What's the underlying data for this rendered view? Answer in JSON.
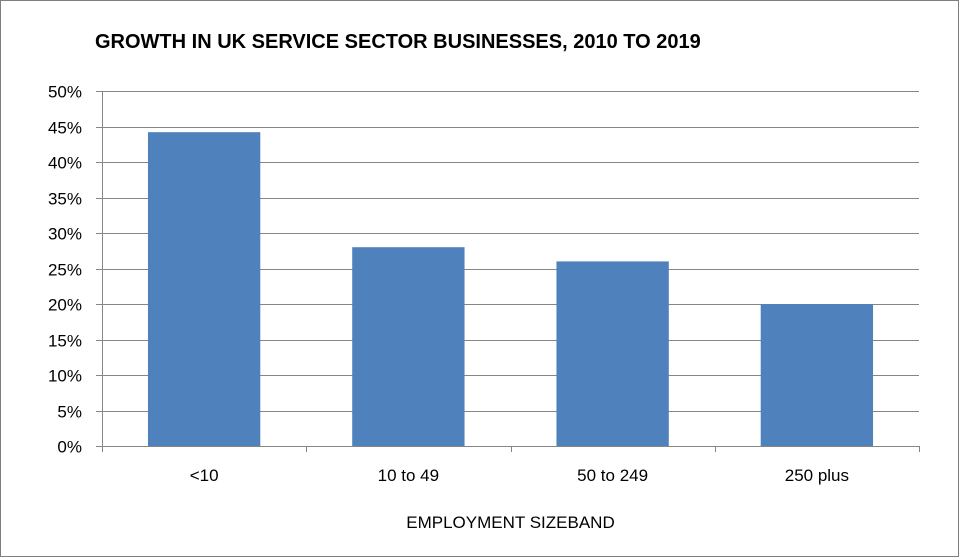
{
  "chart_data": {
    "type": "bar",
    "title": "GROWTH IN UK SERVICE SECTOR BUSINESSES, 2010 TO 2019",
    "xlabel": "EMPLOYMENT SIZEBAND",
    "ylabel": "",
    "categories": [
      "<10",
      "10 to 49",
      "50 to 249",
      "250 plus"
    ],
    "values": [
      44.2,
      28,
      26,
      20
    ],
    "ylim": [
      0,
      50
    ],
    "yticks": [
      0,
      5,
      10,
      15,
      20,
      25,
      30,
      35,
      40,
      45,
      50
    ],
    "ytick_suffix": "%",
    "grid": true,
    "legend": "none",
    "colors": {
      "bar": "#4f81bd",
      "grid": "#868686",
      "axis": "#868686",
      "text": "#000000"
    }
  }
}
